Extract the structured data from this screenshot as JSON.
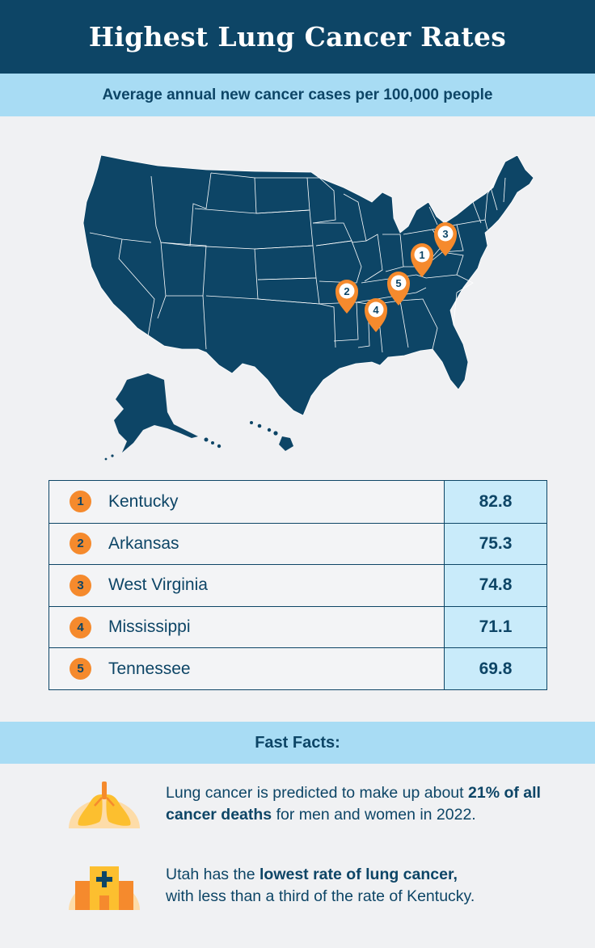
{
  "header": {
    "title": "Highest Lung Cancer Rates",
    "subtitle": "Average annual new cancer cases per 100,000 people"
  },
  "map": {
    "markers": [
      {
        "rank": "1",
        "state": "Kentucky"
      },
      {
        "rank": "2",
        "state": "Arkansas"
      },
      {
        "rank": "3",
        "state": "West Virginia"
      },
      {
        "rank": "4",
        "state": "Mississippi"
      },
      {
        "rank": "5",
        "state": "Tennessee"
      }
    ]
  },
  "table": {
    "rows": [
      {
        "rank": "1",
        "state": "Kentucky",
        "value": "82.8"
      },
      {
        "rank": "2",
        "state": "Arkansas",
        "value": "75.3"
      },
      {
        "rank": "3",
        "state": "West Virginia",
        "value": "74.8"
      },
      {
        "rank": "4",
        "state": "Mississippi",
        "value": "71.1"
      },
      {
        "rank": "5",
        "state": "Tennessee",
        "value": "69.8"
      }
    ]
  },
  "facts": {
    "title": "Fast Facts:",
    "items": [
      {
        "icon": "lungs-icon",
        "pre": "Lung cancer is predicted to make up about ",
        "bold": "21% of all cancer deaths",
        "post": " for men and women in 2022."
      },
      {
        "icon": "hospital-icon",
        "pre": "Utah has the ",
        "bold": "lowest rate of lung cancer,",
        "post": " with less than a third of the rate of Kentucky."
      }
    ]
  },
  "colors": {
    "navy": "#0d4566",
    "light_blue": "#a8dcf4",
    "table_value_bg": "#c9ebfa",
    "orange": "#f58a2d",
    "background": "#f0f1f3"
  }
}
